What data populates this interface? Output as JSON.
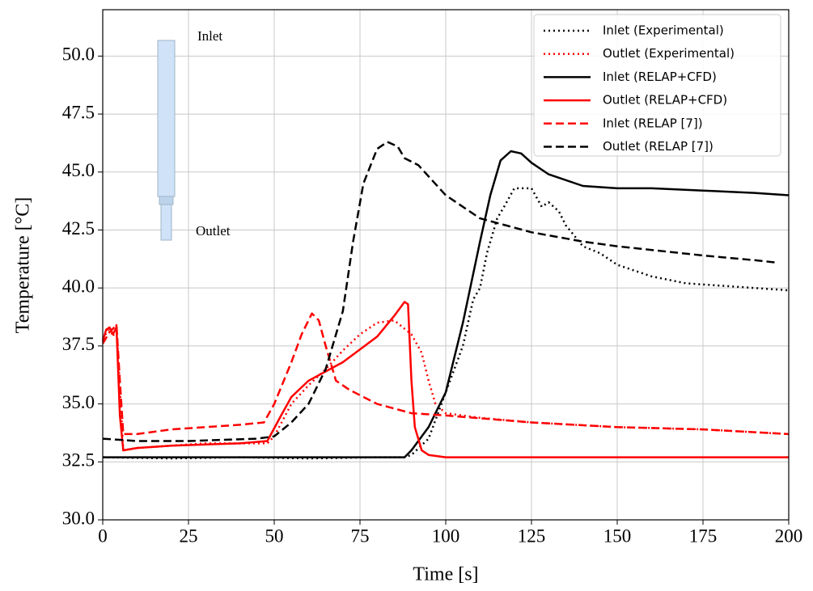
{
  "chart_data": {
    "type": "line",
    "xlabel": "Time [s]",
    "ylabel": "Temperature [°C]",
    "annotations": [
      "Inlet",
      "Outlet"
    ],
    "xlim": [
      0,
      200
    ],
    "ylim": [
      30,
      52
    ],
    "xticks": [
      0,
      25,
      50,
      75,
      100,
      125,
      150,
      175,
      200
    ],
    "yticks": [
      {
        "value": 30,
        "label": "30.0"
      },
      32.5,
      {
        "value": 35,
        "label": "35.0"
      },
      37.5,
      {
        "value": 40,
        "label": "40.0"
      },
      42.5,
      {
        "value": 45,
        "label": "45.0"
      },
      47.5,
      {
        "value": 50,
        "label": "50.0"
      }
    ],
    "grid": true,
    "legend": "upper right",
    "series": [
      {
        "name": "Inlet (Experimental)",
        "color": "#000000",
        "dash": "dotted",
        "x": [
          0,
          20,
          40,
          60,
          80,
          88,
          90,
          95,
          100,
          105,
          108,
          110,
          112,
          115,
          117,
          120,
          125,
          128,
          130,
          133,
          135,
          140,
          145,
          150,
          160,
          170,
          180,
          190,
          200
        ],
        "values": [
          32.7,
          32.65,
          32.7,
          32.65,
          32.7,
          32.7,
          32.8,
          33.5,
          35.5,
          37.5,
          39.5,
          40,
          41.5,
          43,
          43.5,
          44.3,
          44.3,
          43.5,
          43.7,
          43.3,
          42.7,
          41.8,
          41.5,
          41,
          40.5,
          40.2,
          40.1,
          40,
          39.9
        ]
      },
      {
        "name": "Outlet (Experimental)",
        "color": "#ff0000",
        "dash": "dotted",
        "x": [
          0,
          2,
          3,
          4,
          6,
          10,
          20,
          30,
          40,
          48,
          50,
          55,
          60,
          65,
          70,
          75,
          80,
          85,
          90,
          93,
          95,
          97,
          100,
          110,
          125,
          150,
          175,
          200
        ],
        "values": [
          37.8,
          38.3,
          37.9,
          38.4,
          33,
          33.1,
          33.2,
          33.3,
          33.3,
          33.3,
          33.6,
          35,
          35.8,
          36.5,
          37.3,
          38,
          38.5,
          38.6,
          38,
          37.2,
          36,
          35,
          34.6,
          34.4,
          34.2,
          34,
          33.9,
          33.7
        ]
      },
      {
        "name": "Inlet (RELAP+CFD)",
        "color": "#000000",
        "dash": "solid",
        "x": [
          0,
          40,
          88,
          90,
          95,
          100,
          105,
          110,
          113,
          116,
          119,
          122,
          125,
          130,
          140,
          150,
          160,
          175,
          190,
          200
        ],
        "values": [
          32.7,
          32.7,
          32.7,
          33,
          34,
          35.5,
          38.5,
          42,
          44,
          45.5,
          45.9,
          45.8,
          45.4,
          44.9,
          44.4,
          44.3,
          44.3,
          44.2,
          44.1,
          44
        ]
      },
      {
        "name": "Outlet (RELAP+CFD)",
        "color": "#ff0000",
        "dash": "solid",
        "x": [
          0,
          1,
          2,
          3,
          4,
          5,
          6,
          10,
          20,
          40,
          48,
          52,
          55,
          60,
          70,
          80,
          85,
          88,
          89,
          90,
          91,
          93,
          95,
          100,
          200
        ],
        "values": [
          37.7,
          38.2,
          38.3,
          38,
          38.3,
          34.5,
          33,
          33.1,
          33.2,
          33.3,
          33.4,
          34.5,
          35.3,
          36,
          36.8,
          37.9,
          38.8,
          39.4,
          39.3,
          36,
          34,
          33,
          32.8,
          32.7,
          32.7
        ]
      },
      {
        "name": "Inlet (RELAP [7])",
        "color": "#ff0000",
        "dash": "dashed",
        "x": [
          0,
          2,
          4,
          5,
          6,
          10,
          20,
          30,
          40,
          47,
          50,
          55,
          58,
          61,
          63,
          65,
          68,
          72,
          80,
          90,
          100,
          125,
          150,
          175,
          200
        ],
        "values": [
          37.6,
          38.1,
          38.4,
          36,
          33.7,
          33.7,
          33.9,
          34,
          34.1,
          34.2,
          35,
          36.8,
          38,
          38.9,
          38.6,
          37.5,
          36,
          35.6,
          35,
          34.6,
          34.5,
          34.2,
          34,
          33.9,
          33.7
        ]
      },
      {
        "name": "Outlet (RELAP [7])",
        "color": "#000000",
        "dash": "dashed",
        "x": [
          0,
          10,
          25,
          45,
          50,
          55,
          60,
          65,
          70,
          73,
          76,
          80,
          83,
          86,
          88,
          92,
          100,
          110,
          125,
          140,
          150,
          175,
          190,
          196
        ],
        "values": [
          33.5,
          33.4,
          33.4,
          33.5,
          33.6,
          34.2,
          35,
          36.5,
          39,
          42,
          44.5,
          46,
          46.3,
          46.1,
          45.6,
          45.3,
          44,
          43,
          42.4,
          42,
          41.8,
          41.4,
          41.2,
          41.1
        ]
      }
    ]
  }
}
